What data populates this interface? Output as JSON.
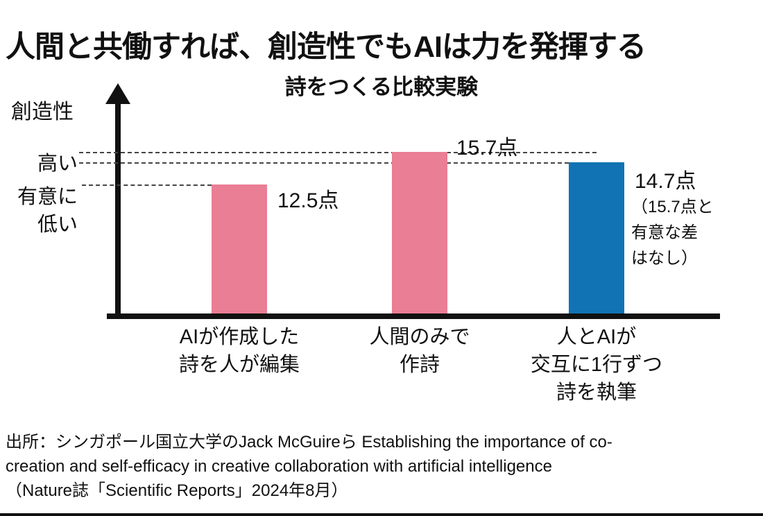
{
  "page": {
    "title": "人間と共働すれば、創造性でもAIは力を発揮する",
    "subtitle": "詩をつくる比較実験"
  },
  "y_axis": {
    "label": "創造性",
    "tick_high": "高い",
    "tick_low_line1": "有意に",
    "tick_low_line2": "低い"
  },
  "chart_data": {
    "type": "bar",
    "title": "詩をつくる比較実験",
    "ylabel": "創造性",
    "y_axis_ticks": [
      "高い",
      "有意に低い"
    ],
    "categories": [
      "AIが作成した詩を人が編集",
      "人間のみで作詩",
      "人とAIが交互に1行ずつ詩を執筆"
    ],
    "values": [
      12.5,
      15.7,
      14.7
    ],
    "unit": "点",
    "value_labels": [
      "12.5点",
      "15.7点",
      "14.7点"
    ],
    "bar_colors": [
      "#e97e94",
      "#e97e94",
      "#1173b4"
    ],
    "annotation": "（15.7点と有意な差はなし）",
    "annotated_bar": "人とAIが交互に1行ずつ詩を執筆",
    "reference_lines": [
      15.7,
      14.7,
      12.5
    ],
    "ylim": [
      0,
      17
    ],
    "grid": false,
    "legend": "none"
  },
  "bars": [
    {
      "value_label": "12.5点",
      "label_lines": [
        "AIが作成した",
        "詩を人が編集"
      ]
    },
    {
      "value_label": "15.7点",
      "label_lines": [
        "人間のみで",
        "作詩"
      ]
    },
    {
      "value_label": "14.7点",
      "label_lines": [
        "人とAIが",
        "交互に1行ずつ",
        "詩を執筆"
      ],
      "annotation_lines": [
        "（15.7点と",
        "有意な差",
        "はなし）"
      ]
    }
  ],
  "source": {
    "line1": "出所：シンガポール国立大学のJack McGuireら Establishing the importance of co-",
    "line2": "creation and self-efficacy in creative collaboration with artificial intelligence",
    "line3": "（Nature誌「Scientific Reports」2024年8月）"
  },
  "colors": {
    "bar_pink": "#e97e94",
    "bar_blue": "#1173b4",
    "axis": "#111111",
    "dashed_line": "#444444",
    "text": "#111111",
    "background": "#ffffff"
  }
}
